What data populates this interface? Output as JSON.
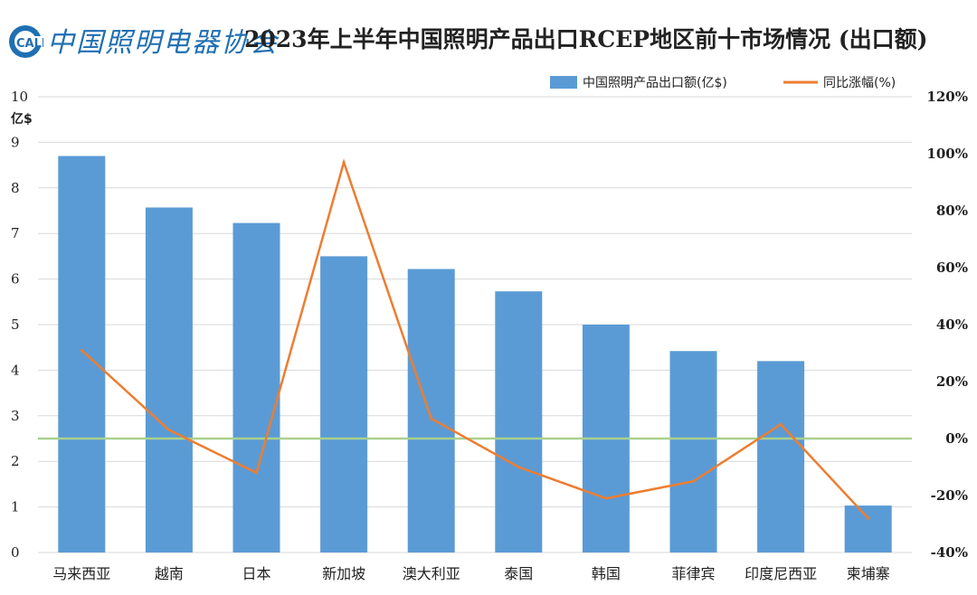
{
  "header": {
    "logo_abbr": "CALI",
    "logo_text": "中国照明电器协会",
    "title": "2023年上半年中国照明产品出口RCEP地区前十市场情况 (出口额)"
  },
  "colors": {
    "bar": "#5b9bd5",
    "line": "#ed7d31",
    "zero_line": "#a9d18e",
    "grid": "#d9d9d9",
    "logo": "#1f6fb2"
  },
  "chart_data": {
    "type": "bar",
    "categories": [
      "马来西亚",
      "越南",
      "日本",
      "新加坡",
      "澳大利亚",
      "泰国",
      "韩国",
      "菲律宾",
      "印度尼西亚",
      "柬埔寨"
    ],
    "series": [
      {
        "name": "中国照明产品出口额(亿$)",
        "type": "bar",
        "axis": "left",
        "values": [
          8.7,
          7.57,
          7.23,
          6.5,
          6.22,
          5.73,
          5.0,
          4.42,
          4.2,
          1.03
        ]
      },
      {
        "name": "同比涨幅(%)",
        "type": "line",
        "axis": "right",
        "values": [
          31,
          3,
          -12,
          97,
          7,
          -10,
          -21,
          -15,
          5,
          -28
        ]
      }
    ],
    "ylabel_left": "亿$",
    "ylim_left": [
      0,
      10
    ],
    "yticks_left": [
      "0",
      "1",
      "2",
      "3",
      "4",
      "5",
      "6",
      "7",
      "8",
      "9",
      "10"
    ],
    "ylim_right": [
      -40,
      120
    ],
    "yticks_right": [
      "-40%",
      "-20%",
      "0%",
      "20%",
      "40%",
      "60%",
      "80%",
      "100%",
      "120%"
    ],
    "grid": true,
    "legend_position": "top-right"
  }
}
